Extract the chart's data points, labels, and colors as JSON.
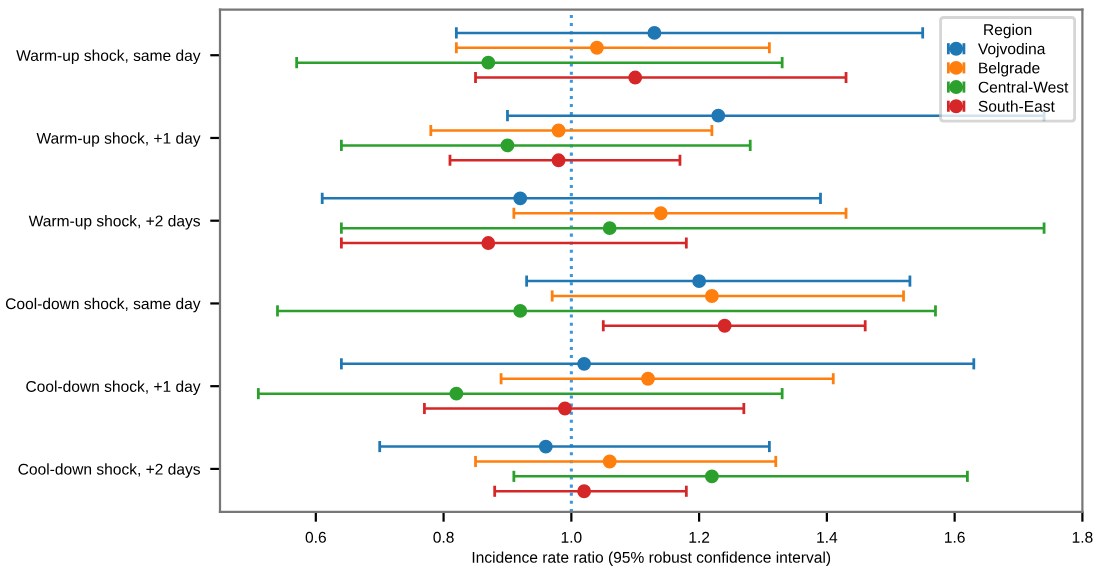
{
  "chart_data": {
    "type": "scatter",
    "orientation": "horizontal",
    "xlabel": "Incidence rate ratio (95% robust confidence interval)",
    "legend_title": "Region",
    "legend": "top right",
    "grid": false,
    "marker": "circle",
    "categories": [
      "Warm-up shock, same day",
      "Warm-up shock, +1 day",
      "Warm-up shock, +2 days",
      "Cool-down shock, same day",
      "Cool-down shock, +1 day",
      "Cool-down shock, +2 days"
    ],
    "xlim": [
      0.45,
      1.8
    ],
    "xticks": [
      0.6,
      0.8,
      {
        "value": 1.0,
        "label": "1.0"
      },
      1.2,
      1.4,
      1.6,
      1.8
    ],
    "ref_lines": [
      {
        "axis": "x",
        "value": 1.0,
        "color": "#3b97e0",
        "line_style": "dotted"
      }
    ],
    "series": [
      {
        "name": "Vojvodina",
        "color": "#1f77b4",
        "values": [
          1.13,
          1.23,
          0.92,
          1.2,
          1.02,
          0.96
        ],
        "errors": [
          [
            0.82,
            1.55
          ],
          [
            0.9,
            1.74
          ],
          [
            0.61,
            1.39
          ],
          [
            0.93,
            1.53
          ],
          [
            0.64,
            1.63
          ],
          [
            0.7,
            1.31
          ]
        ]
      },
      {
        "name": "Belgrade",
        "color": "#ff7f0e",
        "values": [
          1.04,
          0.98,
          1.14,
          1.22,
          1.12,
          1.06
        ],
        "errors": [
          [
            0.82,
            1.31
          ],
          [
            0.78,
            1.22
          ],
          [
            0.91,
            1.43
          ],
          [
            0.97,
            1.52
          ],
          [
            0.89,
            1.41
          ],
          [
            0.85,
            1.32
          ]
        ]
      },
      {
        "name": "Central-West",
        "color": "#2ca02c",
        "values": [
          0.87,
          0.9,
          1.06,
          0.92,
          0.82,
          1.22
        ],
        "errors": [
          [
            0.57,
            1.33
          ],
          [
            0.64,
            1.28
          ],
          [
            0.64,
            1.74
          ],
          [
            0.54,
            1.57
          ],
          [
            0.51,
            1.33
          ],
          [
            0.91,
            1.62
          ]
        ]
      },
      {
        "name": "South-East",
        "color": "#d62728",
        "values": [
          1.1,
          0.98,
          0.87,
          1.24,
          0.99,
          1.02
        ],
        "errors": [
          [
            0.85,
            1.43
          ],
          [
            0.81,
            1.17
          ],
          [
            0.64,
            1.18
          ],
          [
            1.05,
            1.46
          ],
          [
            0.77,
            1.27
          ],
          [
            0.88,
            1.18
          ]
        ]
      }
    ]
  }
}
